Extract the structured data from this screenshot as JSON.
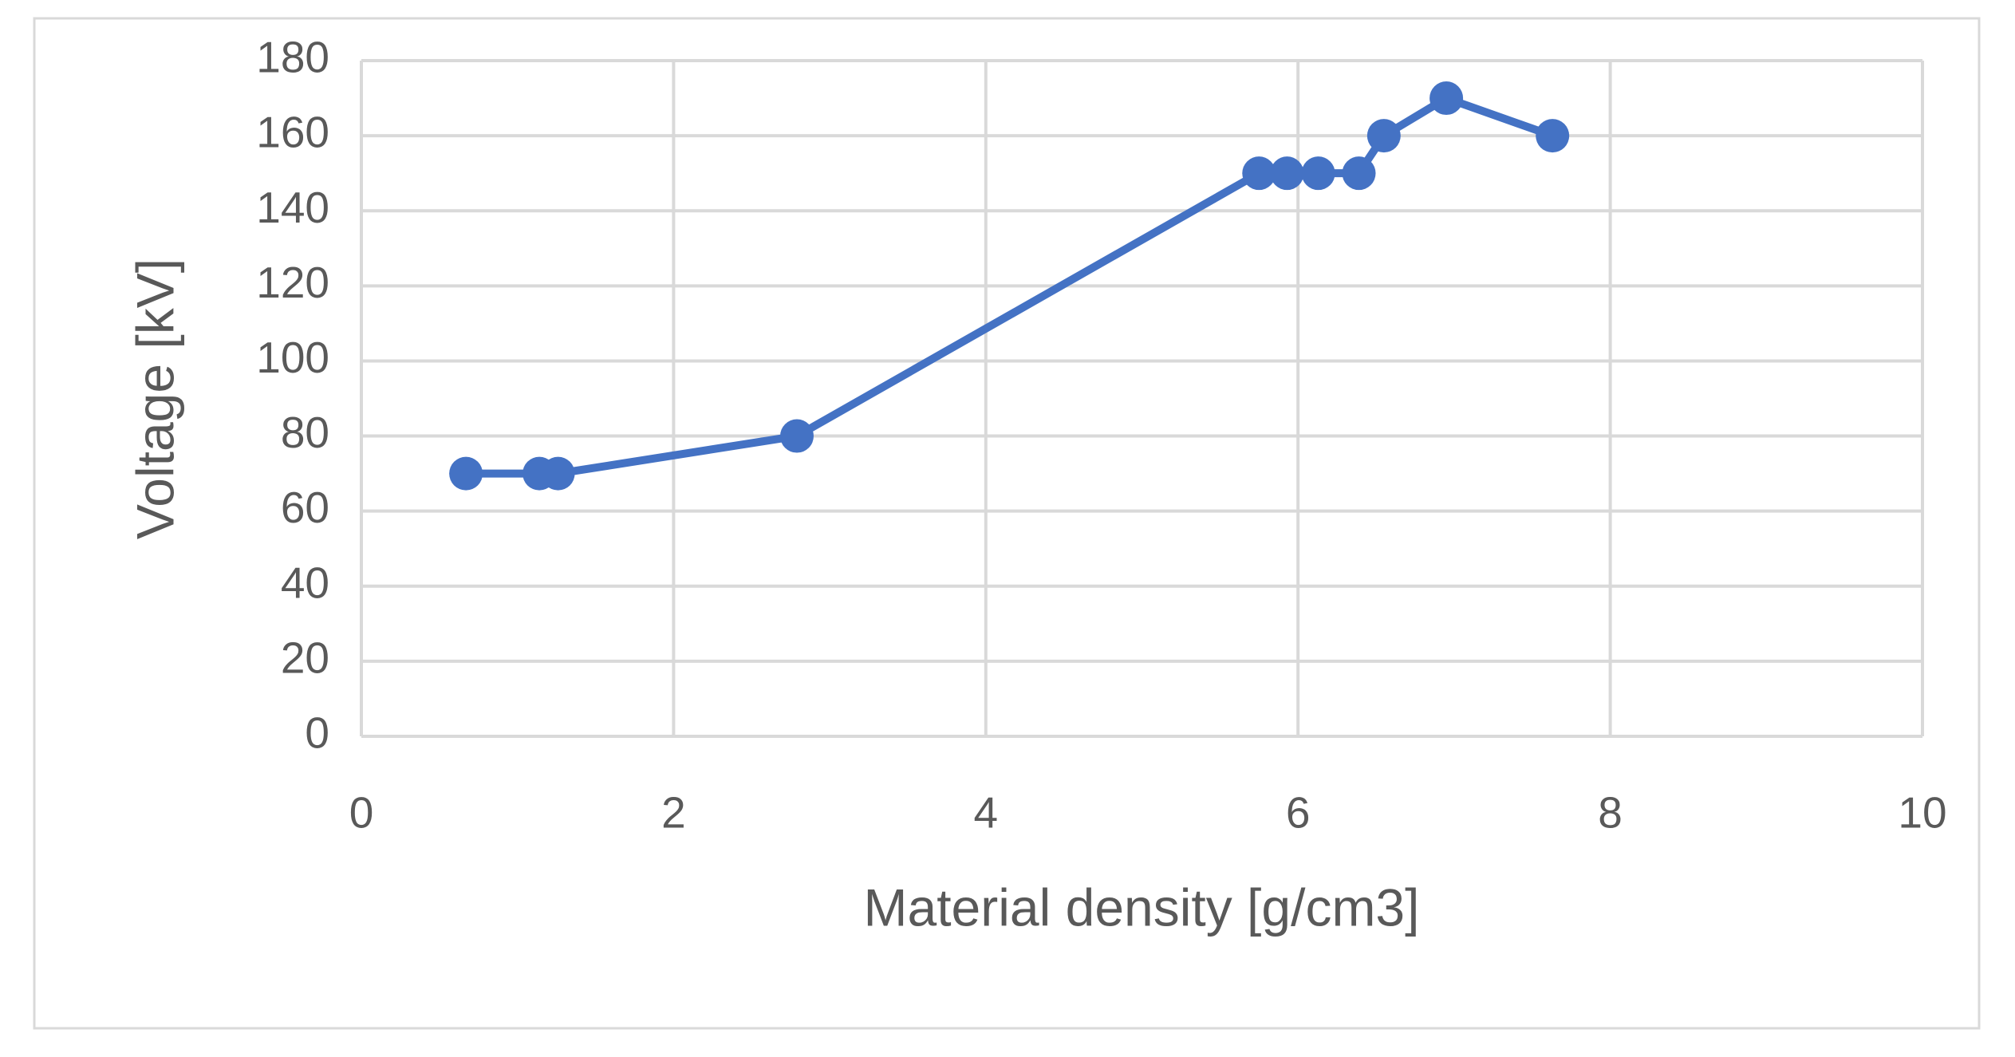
{
  "chart_data": {
    "type": "line",
    "x_label": "Material density [g/cm3]",
    "y_label": "Voltage  [kV]",
    "x": [
      0.67,
      1.14,
      1.26,
      2.79,
      5.75,
      5.93,
      6.13,
      6.39,
      6.55,
      6.95,
      7.63
    ],
    "series": [
      {
        "color": "#4472c4",
        "values": [
          70,
          70,
          70,
          80,
          150,
          150,
          150,
          150,
          160,
          170,
          160
        ]
      }
    ],
    "xlim": [
      0,
      10
    ],
    "xticks": [
      0,
      2,
      4,
      6,
      8,
      10
    ],
    "ylim": [
      0,
      180
    ],
    "yticks": [
      0,
      20,
      40,
      60,
      80,
      100,
      120,
      140,
      160,
      180
    ],
    "grid": true
  }
}
